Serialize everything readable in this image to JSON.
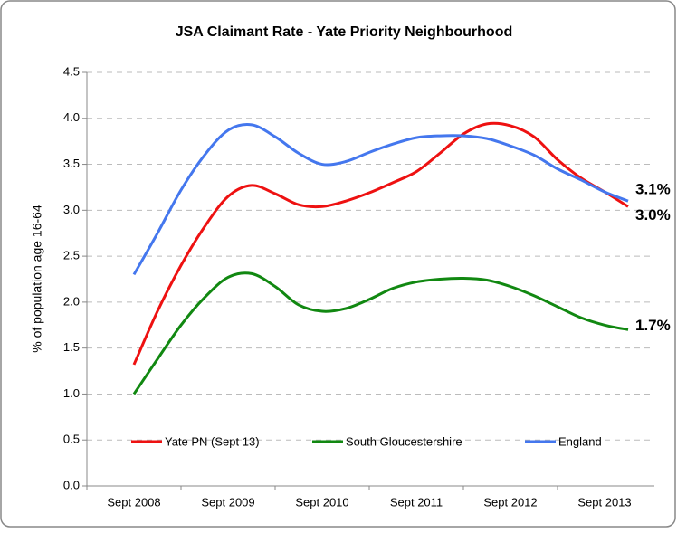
{
  "chart_data": {
    "type": "line",
    "title": "JSA Claimant Rate - Yate Priority Neighbourhood",
    "y_label": "% of population age 16-64",
    "categories": [
      "Sept 2008",
      null,
      null,
      null,
      "Sept 2009",
      null,
      null,
      null,
      "Sept 2010",
      null,
      null,
      null,
      "Sept 2011",
      null,
      null,
      null,
      "Sept 2012",
      null,
      null,
      null,
      "Sept 2013",
      null
    ],
    "series": [
      {
        "name": "Yate PN (Sept 13)",
        "color": "#ee1111",
        "values": [
          1.32,
          1.9,
          2.4,
          2.82,
          3.15,
          3.27,
          3.18,
          3.06,
          3.04,
          3.1,
          3.19,
          3.3,
          3.42,
          3.62,
          3.83,
          3.94,
          3.92,
          3.8,
          3.55,
          3.35,
          3.2,
          3.04
        ]
      },
      {
        "name": "South Gloucestershire",
        "color": "#118811",
        "values": [
          1.0,
          1.38,
          1.75,
          2.05,
          2.27,
          2.31,
          2.17,
          1.97,
          1.9,
          1.93,
          2.03,
          2.15,
          2.22,
          2.25,
          2.26,
          2.24,
          2.17,
          2.07,
          1.95,
          1.83,
          1.75,
          1.7
        ]
      },
      {
        "name": "England",
        "color": "#4477ee",
        "values": [
          2.3,
          2.75,
          3.22,
          3.6,
          3.87,
          3.93,
          3.8,
          3.62,
          3.5,
          3.53,
          3.63,
          3.72,
          3.79,
          3.81,
          3.81,
          3.78,
          3.7,
          3.6,
          3.45,
          3.33,
          3.2,
          3.1
        ]
      }
    ],
    "annotations": [
      {
        "text": "3.1%",
        "value": 3.1
      },
      {
        "text": "3.0%",
        "value": 3.0
      },
      {
        "text": "1.7%",
        "value": 1.7
      }
    ],
    "ylim": [
      0,
      4.5
    ],
    "yticks": [
      {
        "value": 0,
        "label": "0.0"
      },
      0.5,
      {
        "value": 1,
        "label": "1.0"
      },
      1.5,
      {
        "value": 2,
        "label": "2.0"
      },
      2.5,
      {
        "value": 3,
        "label": "3.0"
      },
      3.5,
      {
        "value": 4,
        "label": "4.0"
      },
      4.5
    ],
    "grid": true,
    "legend": "bottom"
  }
}
